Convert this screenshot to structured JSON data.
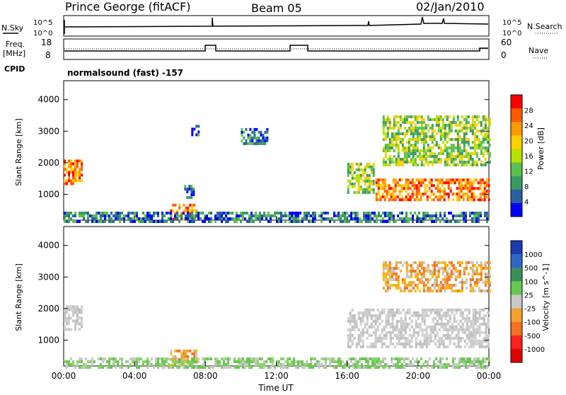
{
  "header": {
    "station": "Prince George (fitACF)",
    "beam": "Beam 05",
    "date": "02/Jan/2010"
  },
  "panels": {
    "nsky": {
      "left_label": "N.Sky",
      "right_label": "N.Search",
      "left_ticks": [
        "10^5",
        "10^0"
      ],
      "right_ticks": [
        "10^5",
        "10^0"
      ]
    },
    "freq": {
      "left_label_1": "Freq.",
      "left_label_2": "[MHz]",
      "right_label": "Nave",
      "left_ticks": [
        "18",
        "8"
      ],
      "right_ticks": [
        "60",
        "0"
      ]
    },
    "cpid": {
      "label": "CPID",
      "value": "normalsound (fast) -157"
    }
  },
  "chart_data": [
    {
      "type": "heatmap",
      "title": "",
      "ylabel": "Slant Range [km]",
      "colorbar_label": "Power [dB]",
      "colorbar_ticks": [
        "28",
        "24",
        "20",
        "16",
        "12",
        "8",
        "4"
      ],
      "colorbar_colors": [
        "#ff0000",
        "#ff5a00",
        "#ff9a00",
        "#ffd000",
        "#b8e000",
        "#5cc050",
        "#3a9a60",
        "#2a60a0",
        "#0000ff"
      ],
      "y_ticks": [
        "4000",
        "3000",
        "2000",
        "1000"
      ],
      "ylim": [
        180,
        4600
      ],
      "xlim": [
        "00:00",
        "24:00"
      ],
      "regions": [
        {
          "x0": 0.0,
          "x1": 1.0,
          "y0": 1300,
          "y1": 2100,
          "level": "high"
        },
        {
          "x0": 6.0,
          "x1": 7.5,
          "y0": 200,
          "y1": 700,
          "level": "high"
        },
        {
          "x0": 6.8,
          "x1": 7.3,
          "y0": 900,
          "y1": 1300,
          "level": "low"
        },
        {
          "x0": 7.2,
          "x1": 7.6,
          "y0": 2900,
          "y1": 3200,
          "level": "low"
        },
        {
          "x0": 10.0,
          "x1": 11.5,
          "y0": 2600,
          "y1": 3100,
          "level": "low"
        },
        {
          "x0": 16.0,
          "x1": 17.5,
          "y0": 1100,
          "y1": 2000,
          "level": "mid"
        },
        {
          "x0": 17.6,
          "x1": 24.0,
          "y0": 800,
          "y1": 1500,
          "level": "high"
        },
        {
          "x0": 18.0,
          "x1": 24.0,
          "y0": 1900,
          "y1": 3500,
          "level": "mid"
        },
        {
          "x0": 0.0,
          "x1": 24.0,
          "y0": 180,
          "y1": 450,
          "level": "low"
        }
      ]
    },
    {
      "type": "heatmap",
      "title": "",
      "ylabel": "Slant Range [km]",
      "colorbar_label": "Velocity [m s^-1]",
      "colorbar_ticks": [
        "1000",
        "500",
        "100",
        "25",
        "-25",
        "-100",
        "-500",
        "-1000"
      ],
      "colorbar_colors": [
        "#1a3ab0",
        "#2f67c8",
        "#3c8f5a",
        "#66c850",
        "#c8c8c8",
        "#f2a030",
        "#f57020",
        "#ff2020",
        "#e00000"
      ],
      "y_ticks": [
        "4000",
        "3000",
        "2000",
        "1000"
      ],
      "ylim": [
        180,
        4600
      ],
      "xlim": [
        "00:00",
        "24:00"
      ],
      "regions": [
        {
          "x0": 0.0,
          "x1": 1.0,
          "y0": 1300,
          "y1": 2100,
          "level": "gray"
        },
        {
          "x0": 6.0,
          "x1": 7.5,
          "y0": 200,
          "y1": 700,
          "level": "orange"
        },
        {
          "x0": 16.0,
          "x1": 24.0,
          "y0": 800,
          "y1": 2000,
          "level": "gray"
        },
        {
          "x0": 18.0,
          "x1": 24.0,
          "y0": 2600,
          "y1": 3500,
          "level": "orange"
        },
        {
          "x0": 0.0,
          "x1": 24.0,
          "y0": 180,
          "y1": 450,
          "level": "green"
        }
      ]
    }
  ],
  "x_ticks": [
    "00:00",
    "04:00",
    "08:00",
    "12:00",
    "16:00",
    "20:00",
    "00:00"
  ],
  "xlabel": "Time UT"
}
